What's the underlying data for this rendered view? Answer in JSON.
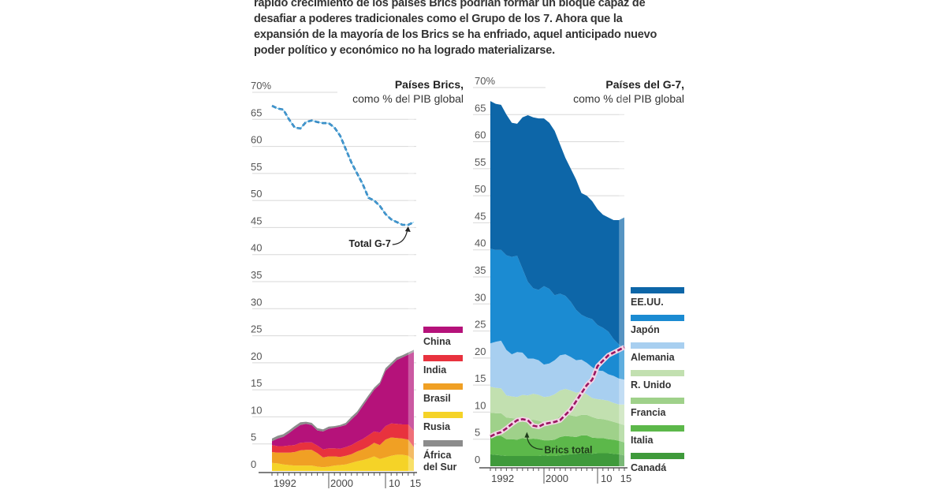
{
  "intro": {
    "lines": [
      "rápido crecimiento de los países Brics podrían formar un bloque capaz de",
      "desafiar a poderes tradicionales como el Grupo de los 7. Ahora que la",
      "expansión de la mayoría de los Brics se ha enfriado, aquel anticipado nuevo",
      "poder político y económico no ha logrado materializarse."
    ]
  },
  "chart_data": [
    {
      "type": "area",
      "stacked": true,
      "title": "Países Brics,",
      "subtitle": "como % del PIB global",
      "x": [
        1990,
        1991,
        1992,
        1993,
        1994,
        1995,
        1996,
        1997,
        1998,
        1999,
        2000,
        2001,
        2002,
        2003,
        2004,
        2005,
        2006,
        2007,
        2008,
        2009,
        2010,
        2011,
        2012,
        2013,
        2014,
        2015
      ],
      "x_tick_labels": [
        "1992",
        "2000",
        "10",
        "15"
      ],
      "y_tick_labels": [
        "70%",
        "65",
        "60",
        "55",
        "50",
        "45",
        "40",
        "35",
        "30",
        "25",
        "20",
        "15",
        "10",
        "5",
        "0"
      ],
      "ylim": [
        0,
        70
      ],
      "grid": true,
      "legend_position": "right",
      "series": [
        {
          "name": "Rusia",
          "color": "#f5d327",
          "values": [
            1.5,
            1.4,
            1.2,
            1.1,
            1.0,
            1.0,
            1.0,
            1.0,
            0.8,
            0.7,
            0.8,
            1.0,
            1.1,
            1.2,
            1.5,
            1.8,
            2.0,
            2.3,
            2.7,
            2.2,
            2.5,
            2.8,
            3.0,
            3.0,
            2.8,
            2.0
          ]
        },
        {
          "name": "Brasil",
          "color": "#f0a024",
          "values": [
            2.0,
            2.0,
            2.2,
            2.3,
            2.5,
            2.8,
            2.9,
            2.9,
            2.5,
            1.8,
            1.9,
            1.7,
            1.5,
            1.6,
            1.6,
            1.8,
            2.0,
            2.2,
            2.5,
            2.6,
            3.3,
            3.4,
            3.1,
            3.0,
            3.0,
            2.4
          ]
        },
        {
          "name": "India",
          "color": "#e8323e",
          "values": [
            1.3,
            1.2,
            1.2,
            1.3,
            1.3,
            1.4,
            1.4,
            1.4,
            1.4,
            1.5,
            1.5,
            1.5,
            1.5,
            1.6,
            1.7,
            1.8,
            1.9,
            2.1,
            2.1,
            2.3,
            2.5,
            2.6,
            2.6,
            2.6,
            2.8,
            3.0
          ]
        },
        {
          "name": "China",
          "color": "#b5127a",
          "values": [
            0.7,
            1.4,
            1.7,
            2.3,
            3.0,
            3.3,
            3.4,
            3.2,
            2.8,
            3.3,
            3.6,
            3.8,
            4.1,
            4.1,
            4.7,
            5.1,
            6.1,
            6.9,
            7.7,
            8.9,
            10.2,
            10.7,
            11.8,
            12.4,
            12.9,
            14.6
          ]
        },
        {
          "name": "África del Sur",
          "color": "#8c8c8c",
          "values": [
            0.5,
            0.5,
            0.5,
            0.5,
            0.5,
            0.5,
            0.4,
            0.4,
            0.4,
            0.4,
            0.4,
            0.3,
            0.3,
            0.4,
            0.5,
            0.5,
            0.5,
            0.5,
            0.4,
            0.4,
            0.5,
            0.5,
            0.5,
            0.4,
            0.4,
            0.4
          ]
        }
      ],
      "overlay_line": {
        "name": "Total G-7",
        "color": "#3a9ad9",
        "style": "dashed",
        "values": [
          67.5,
          67.0,
          66.8,
          65.0,
          63.5,
          63.3,
          64.5,
          64.8,
          64.5,
          64.3,
          64.3,
          63.5,
          62.0,
          59.5,
          57.0,
          55.0,
          53.0,
          50.5,
          50.0,
          49.0,
          47.5,
          46.5,
          46.0,
          45.5,
          45.5,
          46.0
        ]
      },
      "annotations": [
        {
          "text": "Total G-7",
          "x": 2014,
          "y": 45.5
        }
      ]
    },
    {
      "type": "area",
      "stacked": true,
      "title": "Países del G-7,",
      "subtitle": "como % del PIB global",
      "x": [
        1990,
        1991,
        1992,
        1993,
        1994,
        1995,
        1996,
        1997,
        1998,
        1999,
        2000,
        2001,
        2002,
        2003,
        2004,
        2005,
        2006,
        2007,
        2008,
        2009,
        2010,
        2011,
        2012,
        2013,
        2014,
        2015
      ],
      "x_tick_labels": [
        "1992",
        "2000",
        "10",
        "15"
      ],
      "y_tick_labels": [
        "70%",
        "65",
        "60",
        "55",
        "50",
        "45",
        "40",
        "35",
        "30",
        "25",
        "20",
        "15",
        "10",
        "5",
        "0"
      ],
      "ylim": [
        0,
        70
      ],
      "grid": true,
      "legend_position": "right",
      "series": [
        {
          "name": "Canadá",
          "color": "#3f9a3b",
          "values": [
            2.2,
            2.1,
            2.0,
            1.9,
            1.9,
            1.9,
            1.9,
            1.9,
            1.9,
            1.9,
            2.0,
            1.9,
            1.9,
            2.0,
            2.1,
            2.2,
            2.3,
            2.4,
            2.4,
            2.3,
            2.4,
            2.4,
            2.4,
            2.3,
            2.2,
            2.0
          ]
        },
        {
          "name": "Italia",
          "color": "#5cb84a",
          "values": [
            3.5,
            3.6,
            3.6,
            3.1,
            3.1,
            3.0,
            3.3,
            3.1,
            3.2,
            3.1,
            2.8,
            2.9,
            3.0,
            3.4,
            3.5,
            3.3,
            3.1,
            3.3,
            3.3,
            3.0,
            2.8,
            2.8,
            2.6,
            2.6,
            2.5,
            2.4
          ]
        },
        {
          "name": "Francia",
          "color": "#9fd18a",
          "values": [
            4.2,
            4.1,
            4.2,
            4.0,
            3.9,
            3.9,
            3.8,
            3.5,
            3.5,
            3.4,
            3.3,
            3.3,
            3.5,
            3.9,
            4.0,
            3.9,
            3.8,
            3.8,
            3.8,
            3.8,
            3.6,
            3.5,
            3.5,
            3.3,
            3.2,
            3.2
          ]
        },
        {
          "name": "R. Unido",
          "color": "#c2e0b0",
          "values": [
            4.8,
            4.7,
            4.6,
            4.1,
            4.0,
            4.0,
            4.2,
            4.6,
            4.8,
            4.8,
            4.7,
            4.8,
            4.9,
            4.7,
            4.7,
            4.6,
            4.4,
            4.3,
            3.8,
            3.5,
            3.6,
            3.6,
            3.6,
            3.5,
            3.5,
            3.8
          ]
        },
        {
          "name": "Alemania",
          "color": "#a8cff0",
          "values": [
            8.0,
            8.5,
            8.8,
            8.4,
            7.8,
            8.3,
            7.8,
            6.8,
            6.5,
            6.4,
            6.0,
            6.1,
            6.3,
            6.5,
            6.4,
            6.2,
            6.0,
            5.9,
            5.8,
            5.7,
            5.3,
            5.3,
            4.9,
            5.0,
            4.8,
            4.6
          ]
        },
        {
          "name": "Japón",
          "color": "#1b8bd2",
          "values": [
            17.5,
            17.0,
            16.8,
            17.5,
            18.0,
            17.8,
            15.5,
            14.2,
            13.0,
            13.0,
            14.5,
            13.8,
            12.0,
            11.4,
            10.8,
            10.2,
            9.3,
            8.3,
            8.4,
            8.9,
            8.4,
            8.0,
            7.9,
            6.8,
            6.3,
            5.8
          ]
        },
        {
          "name": "EE.UU.",
          "color": "#0d66a8",
          "values": [
            27.3,
            27.0,
            26.8,
            26.0,
            24.8,
            24.4,
            28.0,
            30.8,
            31.6,
            31.7,
            31.0,
            30.7,
            30.4,
            27.6,
            25.5,
            24.6,
            24.1,
            22.5,
            22.5,
            21.8,
            21.4,
            20.9,
            21.1,
            22.0,
            23.0,
            24.2
          ]
        }
      ],
      "overlay_line": {
        "name": "Brics total",
        "color": "#b5127a",
        "style": "dashed",
        "values": [
          5.5,
          6.0,
          6.3,
          7.0,
          7.8,
          8.5,
          8.7,
          8.5,
          7.5,
          7.3,
          7.8,
          8.0,
          8.2,
          8.5,
          9.5,
          10.5,
          12.0,
          13.5,
          15.0,
          16.0,
          18.5,
          19.5,
          20.5,
          21.0,
          21.5,
          22.0
        ]
      },
      "annotations": [
        {
          "text": "Brics total",
          "x": 1998,
          "y": 7.5
        }
      ]
    }
  ]
}
